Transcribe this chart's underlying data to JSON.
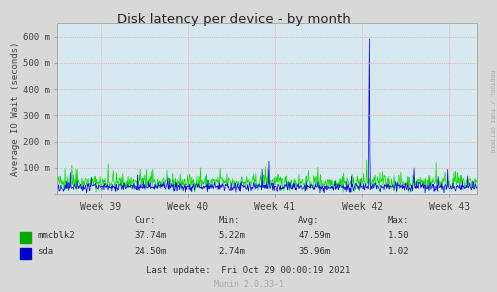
{
  "title": "Disk latency per device - by month",
  "ylabel": "Average IO Wait (seconds)",
  "bg_color": "#d8d8d8",
  "plot_bg_color": "#d8e8f0",
  "grid_color": "#ff9999",
  "x_ticks": [
    39,
    40,
    41,
    42,
    43
  ],
  "x_tick_labels": [
    "Week 39",
    "Week 40",
    "Week 41",
    "Week 42",
    "Week 43"
  ],
  "y_ticks": [
    0,
    100,
    200,
    300,
    400,
    500,
    600
  ],
  "y_tick_labels": [
    "",
    "100 m",
    "200 m",
    "300 m",
    "400 m",
    "500 m",
    "600 m"
  ],
  "ylim": [
    0,
    650
  ],
  "xlim_start": 38.5,
  "xlim_end": 43.32,
  "line1_color": "#00dd00",
  "line2_color": "#0000ee",
  "legend_headers": [
    "Cur:",
    "Min:",
    "Avg:",
    "Max:"
  ],
  "legend_rows": [
    {
      "label": "mmcblk2",
      "color": "#00aa00",
      "vals": [
        "37.74m",
        "5.22m",
        "47.59m",
        "1.50"
      ]
    },
    {
      "label": "sda",
      "color": "#0000cc",
      "vals": [
        "24.50m",
        "2.74m",
        "35.96m",
        "1.02"
      ]
    }
  ],
  "last_update": "Last update:  Fri Oct 29 00:00:19 2021",
  "munin_version": "Munin 2.0.33-1",
  "rrdtool_text": "RRDTOOL / TOBI OETIKER",
  "seed": 42
}
